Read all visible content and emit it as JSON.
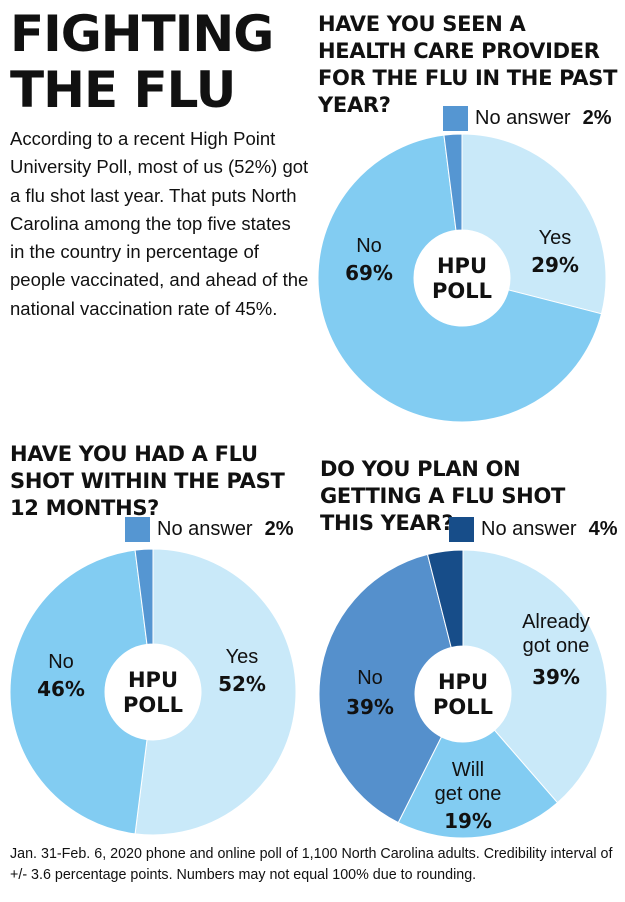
{
  "title": "FIGHTING THE FLU",
  "intro": "According to a recent High Point University Poll, most of us (52%) got a flu shot last year. That puts North Carolina among the top five states in the country in percentage of people vaccinated, and ahead of the national vaccination rate of 45%.",
  "footer": "Jan. 31-Feb. 6, 2020 phone and online poll of 1,100 North Carolina adults. Credibility interval of +/- 3.6 percentage points. Numbers may not equal 100% due to rounding.",
  "center_label": [
    "HPU",
    "POLL"
  ],
  "chart_data": [
    {
      "type": "pie",
      "title": "HAVE YOU SEEN A HEALTH CARE PROVIDER FOR THE FLU IN THE PAST YEAR?",
      "slices": [
        {
          "label": "Yes",
          "value": 29,
          "pct_text": "29%",
          "color": "#c9e9f9"
        },
        {
          "label": "No",
          "value": 69,
          "pct_text": "69%",
          "color": "#82ccf2"
        },
        {
          "label": "No answer",
          "value": 2,
          "pct_text": "2%",
          "color": "#5596d2"
        }
      ],
      "legend": {
        "label": "No answer",
        "pct_text": "2%",
        "color": "#5596d2"
      }
    },
    {
      "type": "pie",
      "title": "HAVE YOU HAD A FLU SHOT WITHIN THE PAST 12 MONTHS?",
      "slices": [
        {
          "label": "Yes",
          "value": 52,
          "pct_text": "52%",
          "color": "#c9e9f9"
        },
        {
          "label": "No",
          "value": 46,
          "pct_text": "46%",
          "color": "#82ccf2"
        },
        {
          "label": "No answer",
          "value": 2,
          "pct_text": "2%",
          "color": "#5596d2"
        }
      ],
      "legend": {
        "label": "No answer",
        "pct_text": "2%",
        "color": "#5596d2"
      }
    },
    {
      "type": "pie",
      "title": "DO YOU PLAN ON GETTING A FLU SHOT THIS YEAR?",
      "slices": [
        {
          "label": "Already got one",
          "value": 39,
          "pct_text": "39%",
          "color": "#c9e9f9"
        },
        {
          "label": "Will get one",
          "value": 19,
          "pct_text": "19%",
          "color": "#82ccf2"
        },
        {
          "label": "No",
          "value": 39,
          "pct_text": "39%",
          "color": "#5590cc"
        },
        {
          "label": "No answer",
          "value": 4,
          "pct_text": "4%",
          "color": "#174d89"
        }
      ],
      "legend": {
        "label": "No answer",
        "pct_text": "4%",
        "color": "#174d89"
      }
    }
  ]
}
